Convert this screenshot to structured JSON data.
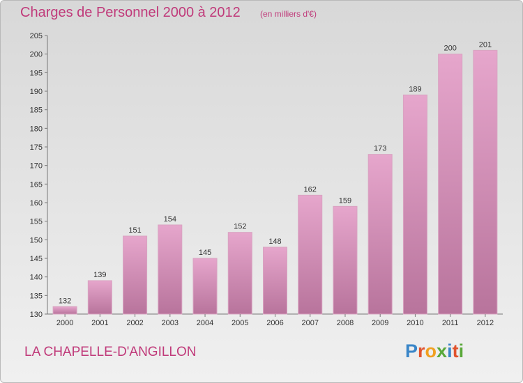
{
  "title": "Charges de Personnel 2000 à 2012",
  "subtitle": "(en milliers d'€)",
  "commune": "LA CHAPELLE-D'ANGILLON",
  "logo": {
    "letters": [
      "P",
      "r",
      "o",
      "x",
      "i",
      "t",
      "i"
    ],
    "colors": [
      "#3a86c8",
      "#e0532e",
      "#f0a020",
      "#5aa83a",
      "#3a86c8",
      "#e0532e",
      "#5aa83a"
    ]
  },
  "colors": {
    "accent": "#c03a7a",
    "bar_top": "#e6a6cc",
    "bar_bottom": "#b8749c"
  },
  "chart_data": {
    "type": "bar",
    "title": "Charges de Personnel 2000 à 2012",
    "subtitle": "(en milliers d'€)",
    "xlabel": "",
    "ylabel": "",
    "categories": [
      "2000",
      "2001",
      "2002",
      "2003",
      "2004",
      "2005",
      "2006",
      "2007",
      "2008",
      "2009",
      "2010",
      "2011",
      "2012"
    ],
    "values": [
      132,
      139,
      151,
      154,
      145,
      152,
      148,
      162,
      159,
      173,
      189,
      200,
      201
    ],
    "ylim": [
      130,
      205
    ],
    "yticks": [
      130,
      135,
      140,
      145,
      150,
      155,
      160,
      165,
      170,
      175,
      180,
      185,
      190,
      195,
      200,
      205
    ],
    "grid": false
  }
}
